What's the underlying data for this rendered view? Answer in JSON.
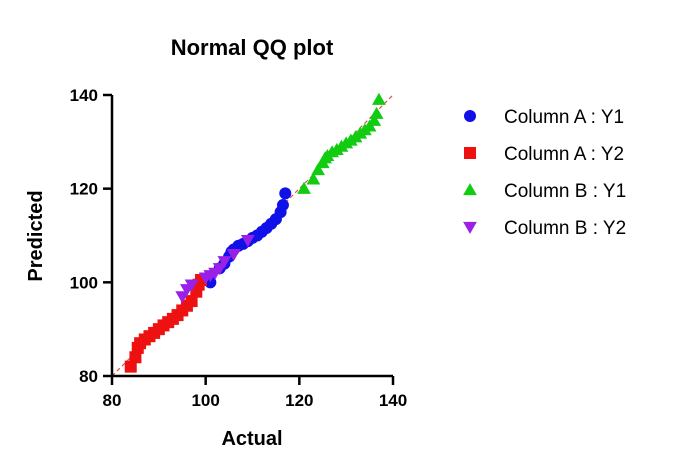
{
  "chart_data": {
    "type": "scatter",
    "title": "Normal QQ plot",
    "xlabel": "Actual",
    "ylabel": "Predicted",
    "xlim": [
      80,
      140
    ],
    "ylim": [
      80,
      140
    ],
    "xticks": [
      80,
      100,
      120,
      140
    ],
    "yticks": [
      80,
      100,
      120,
      140
    ],
    "grid": false,
    "legend_position": "right",
    "reference_line": {
      "style": "dashed",
      "color": "#e8504a",
      "from": [
        80,
        80
      ],
      "to": [
        140,
        140
      ]
    },
    "series": [
      {
        "name": "Column A : Y1",
        "marker": "circle",
        "color": "#1010e8",
        "points": [
          [
            101,
            100
          ],
          [
            103,
            103
          ],
          [
            104,
            104
          ],
          [
            105,
            105.5
          ],
          [
            105.5,
            106.5
          ],
          [
            106,
            107
          ],
          [
            107,
            107.8
          ],
          [
            108,
            108.2
          ],
          [
            109,
            108.8
          ],
          [
            110,
            109.5
          ],
          [
            111,
            110
          ],
          [
            112,
            110.8
          ],
          [
            113,
            111.6
          ],
          [
            114,
            112.5
          ],
          [
            115,
            113.5
          ],
          [
            116,
            115
          ],
          [
            116.5,
            116.5
          ],
          [
            117,
            119
          ]
        ]
      },
      {
        "name": "Column A : Y2",
        "marker": "square",
        "color": "#ee1111",
        "points": [
          [
            84,
            82
          ],
          [
            85,
            84
          ],
          [
            85.5,
            86
          ],
          [
            86,
            87
          ],
          [
            87,
            87.8
          ],
          [
            88,
            88.5
          ],
          [
            89,
            89.2
          ],
          [
            90,
            90
          ],
          [
            91,
            90.8
          ],
          [
            92,
            91.5
          ],
          [
            93,
            92.2
          ],
          [
            94,
            93
          ],
          [
            95,
            94
          ],
          [
            96,
            95
          ],
          [
            97,
            96
          ],
          [
            98,
            98
          ],
          [
            98.5,
            99.5
          ],
          [
            99,
            100.5
          ]
        ]
      },
      {
        "name": "Column B : Y1",
        "marker": "triangle-up",
        "color": "#11cc11",
        "points": [
          [
            121,
            120
          ],
          [
            123,
            122
          ],
          [
            124,
            124
          ],
          [
            125,
            125.5
          ],
          [
            125.5,
            126.5
          ],
          [
            126,
            127
          ],
          [
            127,
            127.8
          ],
          [
            128,
            128.3
          ],
          [
            129,
            129
          ],
          [
            130,
            129.7
          ],
          [
            131,
            130.3
          ],
          [
            132,
            131
          ],
          [
            133,
            131.8
          ],
          [
            134,
            132.5
          ],
          [
            135,
            133.3
          ],
          [
            136,
            134.5
          ],
          [
            136.5,
            136
          ],
          [
            137,
            139
          ]
        ]
      },
      {
        "name": "Column B : Y2",
        "marker": "triangle-down",
        "color": "#9a20e8",
        "points": [
          [
            95,
            97
          ],
          [
            96,
            98.5
          ],
          [
            97,
            99.5
          ],
          [
            100,
            101
          ],
          [
            101,
            101.5
          ],
          [
            102,
            102
          ],
          [
            103,
            103
          ],
          [
            104,
            104.5
          ],
          [
            106,
            106
          ],
          [
            109,
            109
          ]
        ]
      }
    ]
  }
}
